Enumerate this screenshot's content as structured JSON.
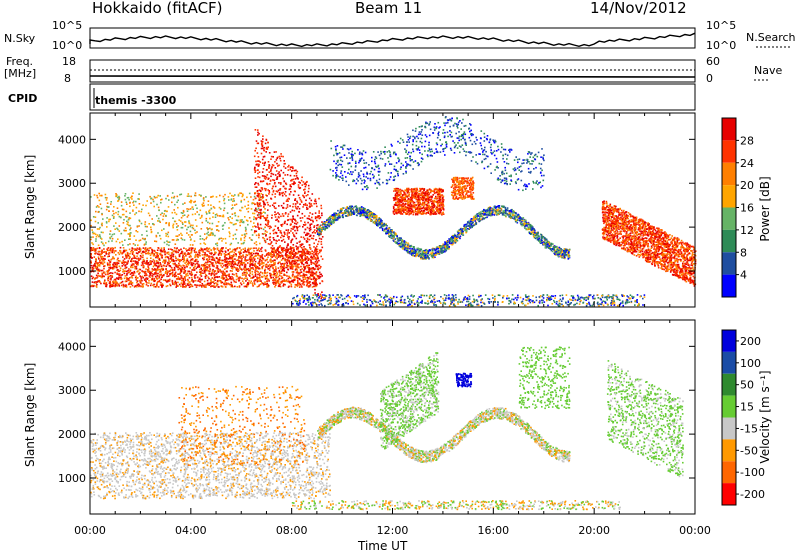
{
  "header": {
    "station": "Hokkaido (fitACF)",
    "beam": "Beam 11",
    "date": "14/Nov/2012"
  },
  "top_panels": {
    "nsky_label": "N.Sky",
    "nsky_ticks": [
      "10^5",
      "10^0"
    ],
    "nsearch_label": "N.Search",
    "nsearch_ticks": [
      "10^5",
      "10^0"
    ],
    "freq_label_1": "Freq.",
    "freq_label_2": "[MHz]",
    "freq_ticks": [
      "18",
      "8"
    ],
    "nave_label": "Nave",
    "nave_ticks": [
      "60",
      "0"
    ],
    "cpid_label": "CPID",
    "cpid_value": "themis -3300"
  },
  "colors": {
    "power_scale": [
      "#0000ff",
      "#1f4ea0",
      "#2e8b57",
      "#66b366",
      "#ffa500",
      "#ff7f00",
      "#ff3300",
      "#e60000"
    ],
    "velocity_scale": [
      "#0000dd",
      "#1a4ca6",
      "#2f8a2f",
      "#66cc33",
      "#c8c8c8",
      "#ff9900",
      "#ff6600",
      "#ff0000"
    ]
  },
  "chart_data": [
    {
      "type": "heatmap",
      "panel": "power",
      "xlabel": "",
      "ylabel": "Slant Range [km]",
      "x_ticks": [
        "00:00",
        "04:00",
        "08:00",
        "12:00",
        "16:00",
        "20:00",
        "00:00"
      ],
      "y_ticks": [
        1000,
        2000,
        3000,
        4000
      ],
      "ylim": [
        180,
        4600
      ],
      "xlim_hours": [
        0,
        24
      ],
      "colorbar": {
        "label": "Power [dB]",
        "ticks": [
          4,
          8,
          12,
          16,
          20,
          24,
          28
        ],
        "range": [
          0,
          32
        ]
      }
    },
    {
      "type": "heatmap",
      "panel": "velocity",
      "xlabel": "Time UT",
      "ylabel": "Slant Range [km]",
      "x_ticks": [
        "00:00",
        "04:00",
        "08:00",
        "12:00",
        "16:00",
        "20:00",
        "00:00"
      ],
      "y_ticks": [
        1000,
        2000,
        3000,
        4000
      ],
      "ylim": [
        180,
        4600
      ],
      "xlim_hours": [
        0,
        24
      ],
      "colorbar": {
        "label": "Velocity [m s⁻¹]",
        "ticks": [
          200,
          100,
          50,
          15,
          -15,
          -50,
          -100,
          -200
        ]
      }
    }
  ]
}
